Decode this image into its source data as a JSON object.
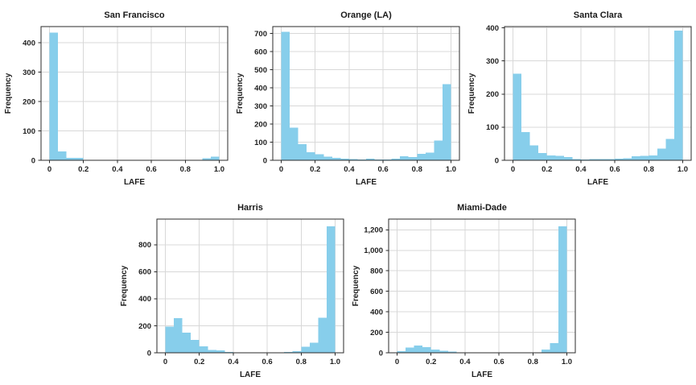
{
  "figure": {
    "background": "#ffffff",
    "rows": [
      [
        "San Francisco",
        "Orange (LA)",
        "Santa Clara"
      ],
      [
        "Harris",
        "Miami-Dade"
      ]
    ]
  },
  "colors": {
    "bar_fill": "#87CEEB",
    "axis": "#2b2b2b",
    "grid": "#d8d8d8",
    "text": "#1f1f1f",
    "title": "#1a1a1a"
  },
  "chart_data": [
    {
      "type": "bar",
      "chart_kind": "histogram",
      "title": "San Francisco",
      "xlabel": "LAFE",
      "ylabel": "Frequency",
      "bin_start": 0,
      "bin_width": 0.05,
      "values": [
        435,
        30,
        8,
        8,
        2,
        1,
        2,
        2,
        2,
        1,
        1,
        1,
        1,
        2,
        1,
        1,
        1,
        1,
        7,
        12
      ],
      "xlim": [
        -0.05,
        1.05
      ],
      "ylim": [
        0,
        455
      ],
      "xticks": [
        0,
        0.2,
        0.4,
        0.6,
        0.8,
        1.0
      ],
      "xtick_labels": [
        "0",
        "0.2",
        "0.4",
        "0.6",
        "0.8",
        "1.0"
      ],
      "yticks": [
        0,
        100,
        200,
        300,
        400
      ],
      "ytick_labels": [
        "0",
        "100",
        "200",
        "300",
        "400"
      ],
      "grid": true,
      "legend": false
    },
    {
      "type": "bar",
      "chart_kind": "histogram",
      "title": "Orange (LA)",
      "xlabel": "LAFE",
      "ylabel": "Frequency",
      "bin_start": 0,
      "bin_width": 0.05,
      "values": [
        710,
        180,
        90,
        45,
        33,
        20,
        13,
        8,
        6,
        5,
        8,
        4,
        4,
        10,
        23,
        18,
        35,
        42,
        110,
        420
      ],
      "xlim": [
        -0.05,
        1.05
      ],
      "ylim": [
        0,
        738
      ],
      "xticks": [
        0,
        0.2,
        0.4,
        0.6,
        0.8,
        1.0
      ],
      "xtick_labels": [
        "0",
        "0.2",
        "0.4",
        "0.6",
        "0.8",
        "1.0"
      ],
      "yticks": [
        0,
        100,
        200,
        300,
        400,
        500,
        600,
        700
      ],
      "ytick_labels": [
        "0",
        "100",
        "200",
        "300",
        "400",
        "500",
        "600",
        "700"
      ],
      "grid": true,
      "legend": false
    },
    {
      "type": "bar",
      "chart_kind": "histogram",
      "title": "Santa Clara",
      "xlabel": "LAFE",
      "ylabel": "Frequency",
      "bin_start": 0,
      "bin_width": 0.05,
      "values": [
        262,
        85,
        45,
        22,
        15,
        13,
        10,
        4,
        3,
        4,
        4,
        4,
        5,
        6,
        12,
        13,
        15,
        35,
        65,
        392
      ],
      "xlim": [
        -0.05,
        1.05
      ],
      "ylim": [
        0,
        404
      ],
      "xticks": [
        0,
        0.2,
        0.4,
        0.6,
        0.8,
        1.0
      ],
      "xtick_labels": [
        "0",
        "0.2",
        "0.4",
        "0.6",
        "0.8",
        "1.0"
      ],
      "yticks": [
        0,
        100,
        200,
        300,
        400
      ],
      "ytick_labels": [
        "0",
        "100",
        "200",
        "300",
        "400"
      ],
      "grid": true,
      "legend": false
    },
    {
      "type": "bar",
      "chart_kind": "histogram",
      "title": "Harris",
      "xlabel": "LAFE",
      "ylabel": "Frequency",
      "bin_start": 0,
      "bin_width": 0.05,
      "values": [
        195,
        255,
        150,
        95,
        48,
        20,
        18,
        5,
        3,
        2,
        2,
        2,
        2,
        3,
        5,
        12,
        45,
        75,
        260,
        935
      ],
      "xlim": [
        -0.05,
        1.05
      ],
      "ylim": [
        0,
        990
      ],
      "xticks": [
        0,
        0.2,
        0.4,
        0.6,
        0.8,
        1.0
      ],
      "xtick_labels": [
        "0",
        "0.2",
        "0.4",
        "0.6",
        "0.8",
        "1.0"
      ],
      "yticks": [
        0,
        200,
        400,
        600,
        800
      ],
      "ytick_labels": [
        "0",
        "200",
        "400",
        "600",
        "800"
      ],
      "grid": true,
      "legend": false
    },
    {
      "type": "bar",
      "chart_kind": "histogram",
      "title": "Miami-Dade",
      "xlabel": "LAFE",
      "ylabel": "Frequency",
      "bin_start": 0,
      "bin_width": 0.05,
      "values": [
        15,
        50,
        70,
        55,
        30,
        20,
        10,
        2,
        1,
        1,
        1,
        1,
        1,
        1,
        1,
        1,
        2,
        30,
        95,
        1235
      ],
      "xlim": [
        -0.05,
        1.05
      ],
      "ylim": [
        0,
        1305
      ],
      "xticks": [
        0,
        0.2,
        0.4,
        0.6,
        0.8,
        1.0
      ],
      "xtick_labels": [
        "0",
        "0.2",
        "0.4",
        "0.6",
        "0.8",
        "1.0"
      ],
      "yticks": [
        0,
        200,
        400,
        600,
        800,
        1000,
        1200
      ],
      "ytick_labels": [
        "0",
        "200",
        "400",
        "600",
        "800",
        "1,000",
        "1,200"
      ],
      "grid": true,
      "legend": false
    }
  ]
}
